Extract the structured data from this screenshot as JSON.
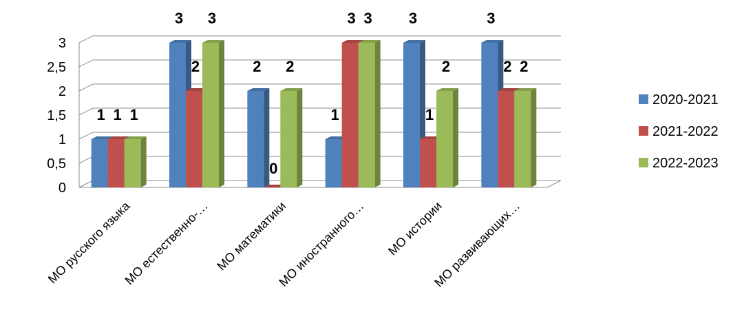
{
  "chart_data": {
    "type": "bar",
    "title": "",
    "xlabel": "",
    "ylabel": "",
    "categories": [
      "МО русского языка",
      "МО естественно-…",
      "МО математики",
      "МО иностранного…",
      "МО истории",
      "МО развивающих…"
    ],
    "series": [
      {
        "name": "2020-2021",
        "color": "#4F81BD",
        "values": [
          1,
          3,
          2,
          1,
          3,
          3
        ]
      },
      {
        "name": "2021-2022",
        "color": "#C0504D",
        "values": [
          1,
          2,
          0,
          3,
          1,
          2
        ]
      },
      {
        "name": "2022-2023",
        "color": "#9BBB59",
        "values": [
          1,
          3,
          2,
          3,
          2,
          2
        ]
      }
    ],
    "ylim": [
      0,
      3
    ],
    "yticks": [
      "0",
      "0,5",
      "1",
      "1,5",
      "2",
      "2,5",
      "3"
    ],
    "grid": true,
    "legend": "right",
    "style": "3d-clustered-column"
  }
}
